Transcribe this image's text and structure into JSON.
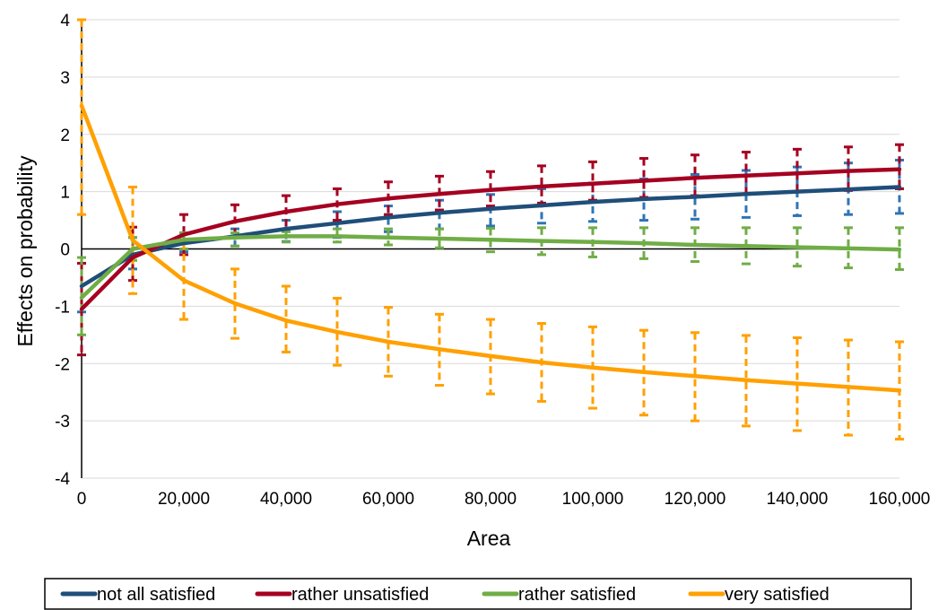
{
  "chart_data": {
    "type": "line",
    "title": "",
    "xlabel": "Area",
    "ylabel": "Effects on probability",
    "xlim": [
      0,
      160000
    ],
    "ylim": [
      -4,
      4
    ],
    "x_ticks": [
      0,
      20000,
      40000,
      60000,
      80000,
      100000,
      120000,
      140000,
      160000
    ],
    "x_tick_labels": [
      "0",
      "20,000",
      "40,000",
      "60,000",
      "80,000",
      "100,000",
      "120,000",
      "140,000",
      "160,000"
    ],
    "y_ticks": [
      -4,
      -3,
      -2,
      -1,
      0,
      1,
      2,
      3,
      4
    ],
    "y_tick_labels": [
      "-4",
      "-3",
      "-2",
      "-1",
      "0",
      "1",
      "2",
      "3",
      "4"
    ],
    "grid": "horizontal",
    "legend_position": "bottom",
    "x": [
      0,
      10000,
      20000,
      30000,
      40000,
      50000,
      60000,
      70000,
      80000,
      90000,
      100000,
      110000,
      120000,
      130000,
      140000,
      150000,
      160000
    ],
    "series": [
      {
        "name": "not all satisfied",
        "color": "#1F4E79",
        "error_color": "#2E75B6",
        "values": [
          -0.65,
          -0.1,
          0.1,
          0.22,
          0.35,
          0.45,
          0.55,
          0.63,
          0.7,
          0.76,
          0.82,
          0.87,
          0.91,
          0.96,
          1.0,
          1.04,
          1.08
        ],
        "lower": [
          -1.1,
          -0.35,
          -0.05,
          0.05,
          0.13,
          0.2,
          0.3,
          0.35,
          0.4,
          0.45,
          0.48,
          0.5,
          0.52,
          0.55,
          0.58,
          0.6,
          0.62
        ],
        "upper": [
          -0.25,
          0.2,
          0.28,
          0.35,
          0.5,
          0.65,
          0.75,
          0.85,
          0.95,
          1.05,
          1.15,
          1.22,
          1.3,
          1.37,
          1.43,
          1.5,
          1.55
        ]
      },
      {
        "name": "rather unsatisfied",
        "color": "#A50021",
        "error_color": "#A50021",
        "values": [
          -1.05,
          -0.15,
          0.25,
          0.48,
          0.65,
          0.78,
          0.88,
          0.96,
          1.03,
          1.09,
          1.14,
          1.19,
          1.24,
          1.28,
          1.32,
          1.36,
          1.39
        ],
        "lower": [
          -1.85,
          -0.55,
          -0.1,
          0.2,
          0.35,
          0.5,
          0.6,
          0.68,
          0.75,
          0.8,
          0.85,
          0.9,
          0.93,
          0.96,
          1.0,
          1.02,
          1.05
        ],
        "upper": [
          -0.25,
          0.38,
          0.6,
          0.77,
          0.93,
          1.05,
          1.17,
          1.27,
          1.35,
          1.45,
          1.52,
          1.58,
          1.64,
          1.69,
          1.74,
          1.78,
          1.82
        ]
      },
      {
        "name": "rather satisfied",
        "color": "#70AD47",
        "error_color": "#70AD47",
        "values": [
          -0.85,
          0.0,
          0.16,
          0.2,
          0.22,
          0.22,
          0.2,
          0.18,
          0.16,
          0.14,
          0.12,
          0.1,
          0.07,
          0.05,
          0.03,
          0.01,
          -0.01
        ],
        "lower": [
          -1.5,
          -0.2,
          0.0,
          0.05,
          0.12,
          0.12,
          0.07,
          0.02,
          -0.05,
          -0.1,
          -0.14,
          -0.17,
          -0.22,
          -0.26,
          -0.3,
          -0.33,
          -0.36
        ],
        "upper": [
          -0.15,
          0.2,
          0.28,
          0.28,
          0.3,
          0.35,
          0.35,
          0.35,
          0.36,
          0.37,
          0.37,
          0.37,
          0.37,
          0.37,
          0.37,
          0.37,
          0.37
        ]
      },
      {
        "name": "very satisfied",
        "color": "#FFA000",
        "error_color": "#FFA000",
        "values": [
          2.5,
          0.15,
          -0.55,
          -0.95,
          -1.25,
          -1.45,
          -1.62,
          -1.75,
          -1.87,
          -1.98,
          -2.07,
          -2.15,
          -2.22,
          -2.29,
          -2.35,
          -2.41,
          -2.47
        ],
        "lower": [
          0.6,
          -0.78,
          -1.23,
          -1.56,
          -1.8,
          -2.03,
          -2.22,
          -2.38,
          -2.53,
          -2.66,
          -2.78,
          -2.9,
          -3.0,
          -3.09,
          -3.17,
          -3.25,
          -3.32
        ],
        "upper": [
          4.0,
          1.08,
          0.12,
          -0.35,
          -0.65,
          -0.86,
          -1.02,
          -1.14,
          -1.23,
          -1.3,
          -1.36,
          -1.42,
          -1.46,
          -1.51,
          -1.55,
          -1.59,
          -1.62
        ]
      }
    ]
  }
}
